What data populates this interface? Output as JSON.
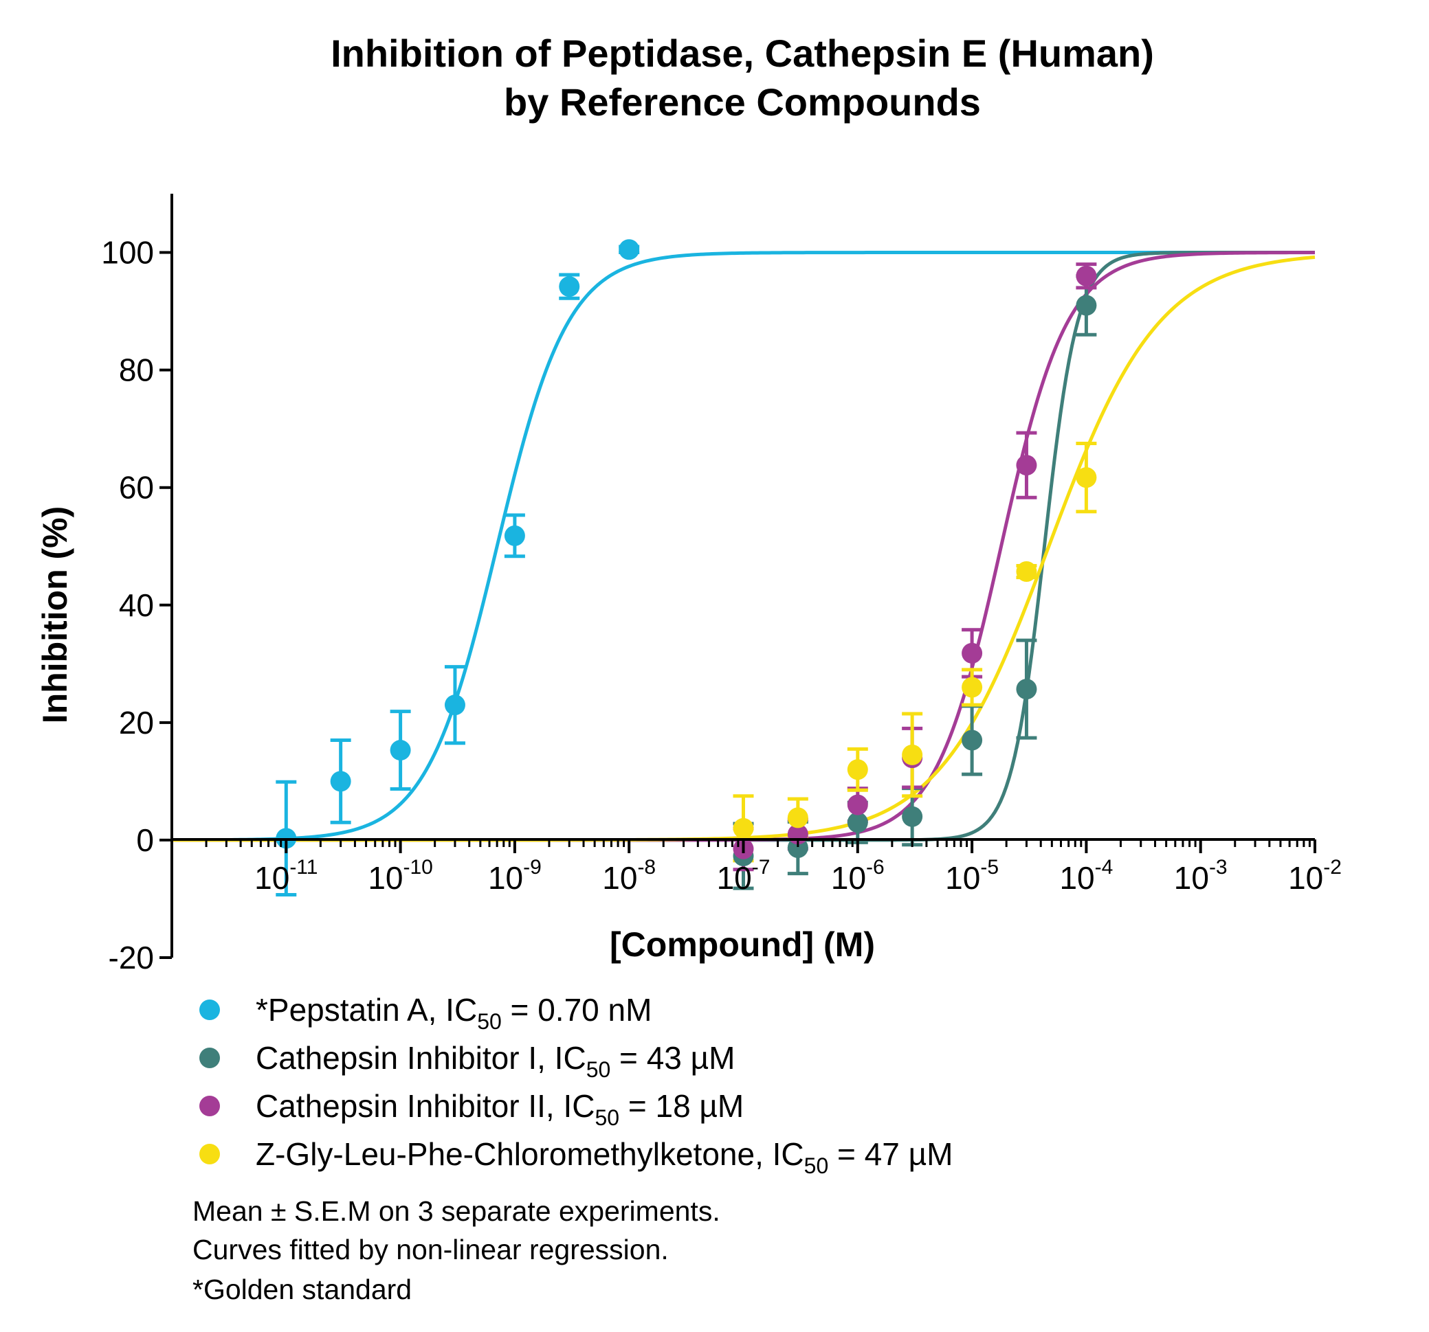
{
  "chart_data": {
    "type": "scatter",
    "title_lines": [
      "Inhibition of Peptidase, Cathepsin E (Human)",
      "by Reference Compounds"
    ],
    "xlabel": "[Compound] (M)",
    "ylabel": "Inhibition (%)",
    "x_scale": "log",
    "x_tick_base": "10",
    "x_tick_exponents": [
      "-11",
      "-10",
      "-9",
      "-8",
      "-7",
      "-6",
      "-5",
      "-4",
      "-3",
      "-2"
    ],
    "y_ticks": [
      "-20",
      "0",
      "20",
      "40",
      "60",
      "80",
      "100"
    ],
    "xlim": [
      1e-12,
      0.01
    ],
    "ylim": [
      -20,
      110
    ],
    "grid": false,
    "legend_position": "below",
    "series": [
      {
        "color": "#1ab4e0",
        "legend_prefix": "*Pepstatin A, IC",
        "legend_sub": "50",
        "legend_suffix": " = 0.70 nM",
        "ic50": 7e-10,
        "hill": 1.4,
        "points": [
          {
            "x": 1e-11,
            "y": 0.3,
            "err": 9.6
          },
          {
            "x": 3e-11,
            "y": 10.0,
            "err": 7.0
          },
          {
            "x": 1e-10,
            "y": 15.3,
            "err": 6.6
          },
          {
            "x": 3e-10,
            "y": 23.0,
            "err": 6.5
          },
          {
            "x": 1e-09,
            "y": 51.8,
            "err": 3.5
          },
          {
            "x": 3e-09,
            "y": 94.2,
            "err": 2.0
          },
          {
            "x": 1e-08,
            "y": 100.5,
            "err": 0.5
          }
        ]
      },
      {
        "color": "#3f7f7a",
        "legend_prefix": "Cathepsin Inhibitor I, IC",
        "legend_sub": "50",
        "legend_suffix": " = 43 µM",
        "ic50": 4.3e-05,
        "hill": 3.0,
        "points": [
          {
            "x": 1e-07,
            "y": -2.7,
            "err": 5.5
          },
          {
            "x": 3e-07,
            "y": -1.3,
            "err": 4.4
          },
          {
            "x": 1e-06,
            "y": 3.0,
            "err": 3.4
          },
          {
            "x": 3e-06,
            "y": 4.0,
            "err": 4.8
          },
          {
            "x": 1e-05,
            "y": 17.0,
            "err": 5.8
          },
          {
            "x": 3e-05,
            "y": 25.7,
            "err": 8.3
          },
          {
            "x": 0.0001,
            "y": 91.0,
            "err": 5.0
          }
        ]
      },
      {
        "color": "#a43c96",
        "legend_prefix": "Cathepsin Inhibitor II, IC",
        "legend_sub": "50",
        "legend_suffix": " = 18 µM",
        "ic50": 1.8e-05,
        "hill": 1.5,
        "points": [
          {
            "x": 1e-07,
            "y": -1.5,
            "err": 3.5
          },
          {
            "x": 3e-07,
            "y": 1.0,
            "err": 2.5
          },
          {
            "x": 1e-06,
            "y": 6.0,
            "err": 2.8
          },
          {
            "x": 3e-06,
            "y": 14.0,
            "err": 5.0
          },
          {
            "x": 1e-05,
            "y": 31.8,
            "err": 4.0
          },
          {
            "x": 3e-05,
            "y": 63.8,
            "err": 5.5
          },
          {
            "x": 0.0001,
            "y": 96.0,
            "err": 2.0
          }
        ]
      },
      {
        "color": "#f7de12",
        "legend_prefix": "Z-Gly-Leu-Phe-Chloromethylketone, IC",
        "legend_sub": "50",
        "legend_suffix": " = 47 µM",
        "ic50": 4.7e-05,
        "hill": 0.9,
        "points": [
          {
            "x": 1e-07,
            "y": 2.0,
            "err": 5.5
          },
          {
            "x": 3e-07,
            "y": 3.8,
            "err": 3.2
          },
          {
            "x": 1e-06,
            "y": 12.0,
            "err": 3.5
          },
          {
            "x": 3e-06,
            "y": 14.5,
            "err": 7.0
          },
          {
            "x": 1e-05,
            "y": 26.0,
            "err": 3.0
          },
          {
            "x": 3e-05,
            "y": 45.7,
            "err": 1.0
          },
          {
            "x": 0.0001,
            "y": 61.7,
            "err": 5.8
          }
        ]
      }
    ]
  },
  "notes": [
    "Mean ± S.E.M on 3 separate experiments.",
    "Curves fitted by non-linear regression.",
    "*Golden standard"
  ]
}
